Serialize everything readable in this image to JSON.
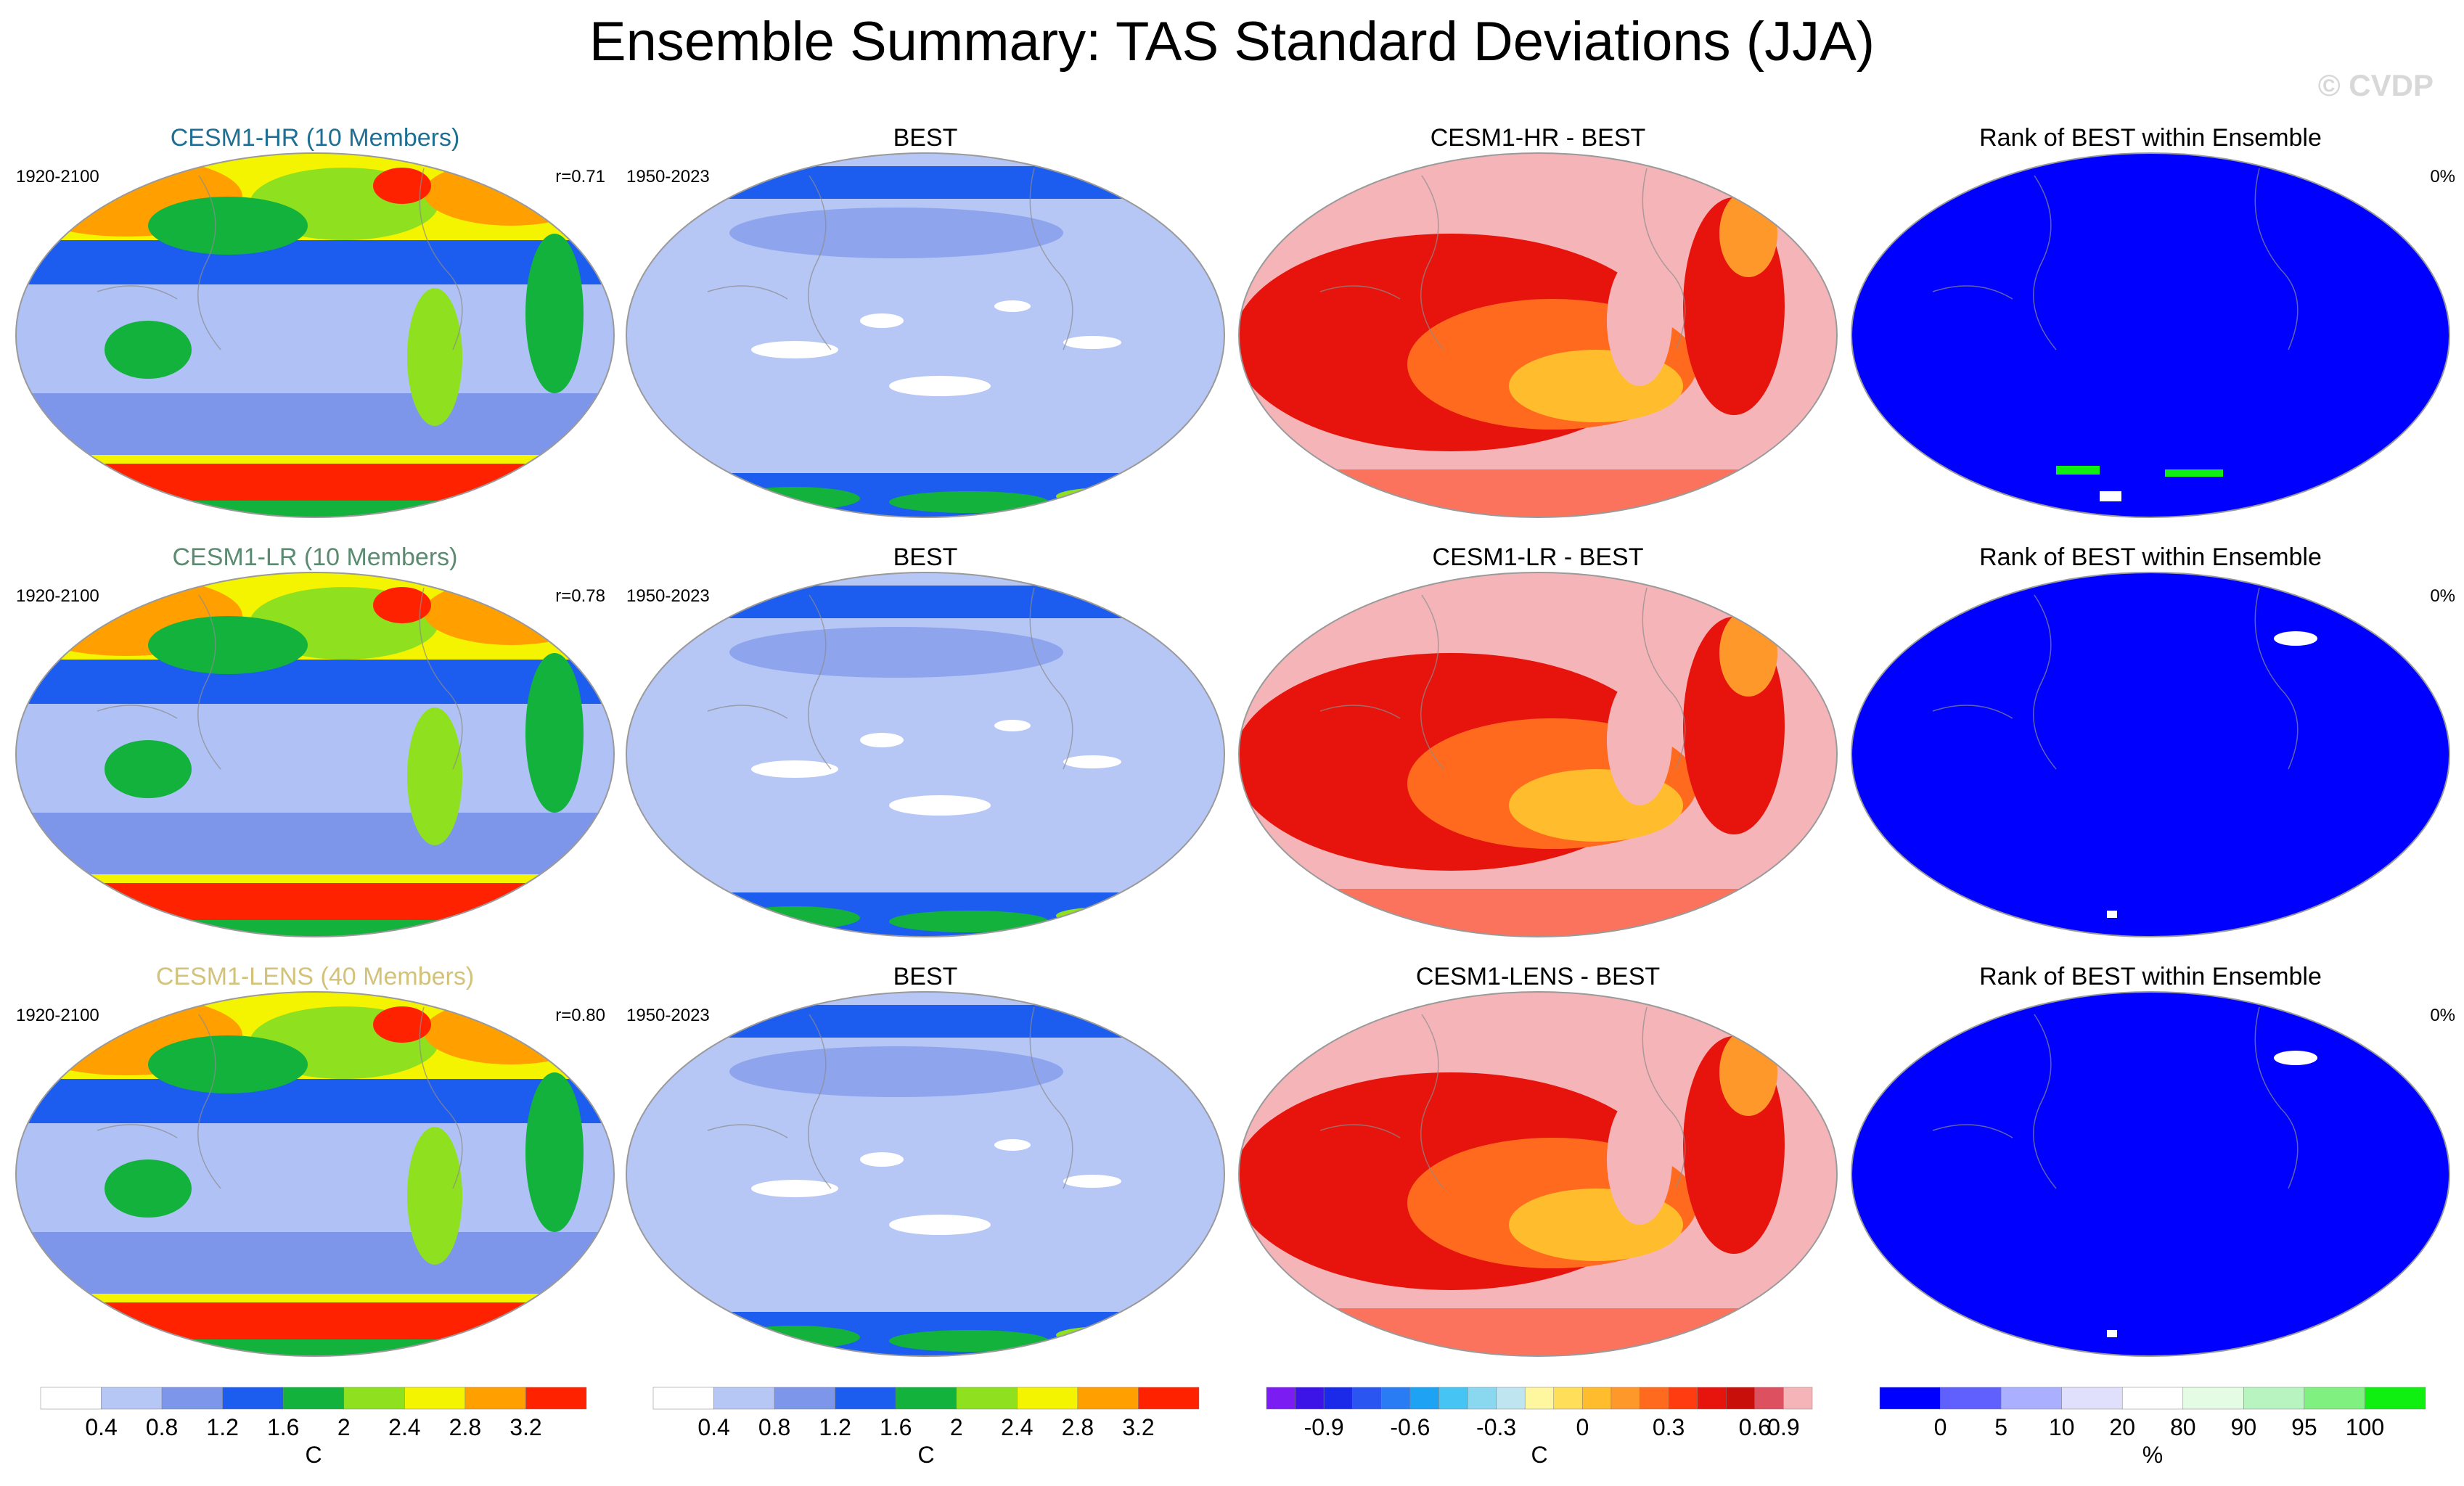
{
  "figure": {
    "title": "Ensemble Summary: TAS Standard Deviations (JJA)",
    "watermark": "© CVDP"
  },
  "colorbars": [
    {
      "levels": [
        "0.4",
        "0.8",
        "1.2",
        "1.6",
        "2",
        "2.4",
        "2.8",
        "3.2"
      ],
      "unit": "C",
      "colors": [
        "#ffffff",
        "#b6c7f6",
        "#7d96ea",
        "#1c5cee",
        "#12b23c",
        "#8fe01f",
        "#f4f400",
        "#ff9f00",
        "#ff2200"
      ]
    },
    {
      "levels": [
        "0.4",
        "0.8",
        "1.2",
        "1.6",
        "2",
        "2.4",
        "2.8",
        "3.2"
      ],
      "unit": "C",
      "colors": [
        "#ffffff",
        "#b6c7f6",
        "#7d96ea",
        "#1c5cee",
        "#12b23c",
        "#8fe01f",
        "#f4f400",
        "#ff9f00",
        "#ff2200"
      ]
    },
    {
      "levels": [
        "-0.9",
        "-0.6",
        "-0.3",
        "0",
        "0.3",
        "0.6",
        "0.9"
      ],
      "unit": "C",
      "colors": [
        "#7a1cf2",
        "#3c14e8",
        "#1b2ae8",
        "#2a55f0",
        "#2a7cf4",
        "#1ea2f4",
        "#46c4f4",
        "#8ad8f0",
        "#bfe6f0",
        "#fff6a0",
        "#ffde5a",
        "#ffbc2c",
        "#ff982a",
        "#ff6a1e",
        "#ff3c10",
        "#e6140c",
        "#c80f0a",
        "#dc5060",
        "#f5b5b8"
      ]
    },
    {
      "levels": [
        "0",
        "5",
        "10",
        "20",
        "80",
        "90",
        "95",
        "100"
      ],
      "unit": "%",
      "colors": [
        "#0000ff",
        "#6060ff",
        "#aab0ff",
        "#e0e0fc",
        "#ffffff",
        "#e4fbe4",
        "#b8f4c0",
        "#80f080",
        "#10f010"
      ]
    }
  ],
  "rows": [
    {
      "model": {
        "title": "CESM1-HR (10 Members)",
        "title_color": "#1f6f94",
        "years": "1920-2100",
        "corr": "r=0.71"
      },
      "obs": {
        "title": "BEST",
        "years": "1950-2023"
      },
      "diff": {
        "title": "CESM1-HR - BEST"
      },
      "rank": {
        "title": "Rank of BEST within Ensemble",
        "pct": "0%"
      }
    },
    {
      "model": {
        "title": "CESM1-LR (10 Members)",
        "title_color": "#5a8a70",
        "years": "1920-2100",
        "corr": "r=0.78"
      },
      "obs": {
        "title": "BEST",
        "years": "1950-2023"
      },
      "diff": {
        "title": "CESM1-LR - BEST"
      },
      "rank": {
        "title": "Rank of BEST within Ensemble",
        "pct": "0%"
      }
    },
    {
      "model": {
        "title": "CESM1-LENS (40 Members)",
        "title_color": "#d2c27a",
        "years": "1920-2100",
        "corr": "r=0.80"
      },
      "obs": {
        "title": "BEST",
        "years": "1950-2023"
      },
      "diff": {
        "title": "CESM1-LENS - BEST"
      },
      "rank": {
        "title": "Rank of BEST within Ensemble",
        "pct": "0%"
      }
    }
  ],
  "chart_data": {
    "type": "heatmap",
    "title": "Ensemble Summary: TAS Standard Deviations (JJA)",
    "variable": "TAS standard deviation",
    "season": "JJA",
    "units": "C",
    "panels": [
      {
        "row": 1,
        "col": 1,
        "title": "CESM1-HR (10 Members)",
        "period": "1920-2100",
        "pattern_correlation": 0.71
      },
      {
        "row": 1,
        "col": 2,
        "title": "BEST",
        "period": "1950-2023"
      },
      {
        "row": 1,
        "col": 3,
        "title": "CESM1-HR - BEST"
      },
      {
        "row": 1,
        "col": 4,
        "title": "Rank of BEST within Ensemble",
        "value_percent": 0
      },
      {
        "row": 2,
        "col": 1,
        "title": "CESM1-LR (10 Members)",
        "period": "1920-2100",
        "pattern_correlation": 0.78
      },
      {
        "row": 2,
        "col": 2,
        "title": "BEST",
        "period": "1950-2023"
      },
      {
        "row": 2,
        "col": 3,
        "title": "CESM1-LR - BEST"
      },
      {
        "row": 2,
        "col": 4,
        "title": "Rank of BEST within Ensemble",
        "value_percent": 0
      },
      {
        "row": 3,
        "col": 1,
        "title": "CESM1-LENS (40 Members)",
        "period": "1920-2100",
        "pattern_correlation": 0.8
      },
      {
        "row": 3,
        "col": 2,
        "title": "BEST",
        "period": "1950-2023"
      },
      {
        "row": 3,
        "col": 3,
        "title": "CESM1-LENS - BEST"
      },
      {
        "row": 3,
        "col": 4,
        "title": "Rank of BEST within Ensemble",
        "value_percent": 0
      }
    ],
    "colorbar_levels": {
      "stddev": [
        0.4,
        0.8,
        1.2,
        1.6,
        2,
        2.4,
        2.8,
        3.2
      ],
      "difference": [
        -0.9,
        -0.6,
        -0.3,
        0,
        0.3,
        0.6,
        0.9
      ],
      "rank_percent": [
        0,
        5,
        10,
        20,
        80,
        90,
        95,
        100
      ]
    }
  }
}
